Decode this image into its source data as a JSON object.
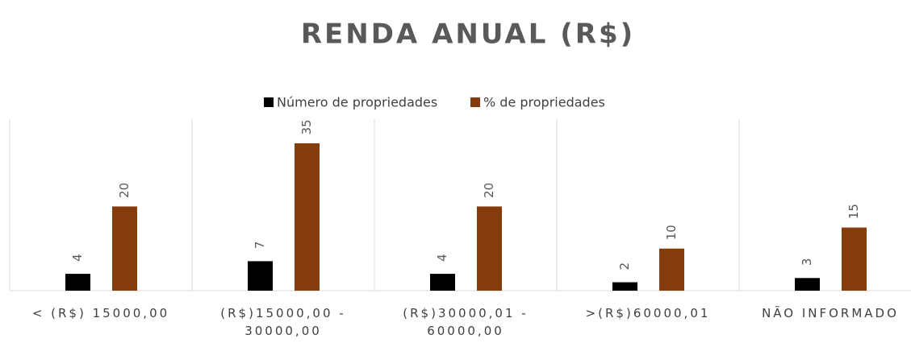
{
  "chart_data": {
    "type": "bar",
    "title": "RENDA ANUAL (R$)",
    "categories": [
      "< (R$) 15000,00",
      "(R$)15000,00 - 30000,00",
      "(R$)30000,01 - 60000,00",
      ">(R$)60000,01",
      "NÃO INFORMADO"
    ],
    "series": [
      {
        "name": "Número de propriedades",
        "color": "#000000",
        "values": [
          4,
          7,
          4,
          2,
          3
        ]
      },
      {
        "name": "% de propriedades",
        "color": "#843c0c",
        "values": [
          20,
          35,
          20,
          10,
          15
        ]
      }
    ],
    "legend": "top",
    "grid": false
  }
}
